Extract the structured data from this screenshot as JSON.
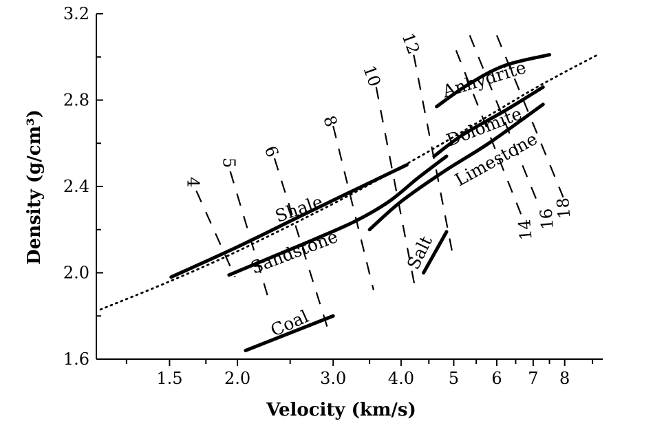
{
  "chart_data": {
    "type": "line",
    "xlabel": "Velocity (km/s)",
    "ylabel": "Density (g/cm³)",
    "xscale": "log",
    "xlim": [
      1.1,
      9.4
    ],
    "ylim": [
      1.6,
      3.2
    ],
    "x_tick_labels": [
      "1.5",
      "2.0",
      "3.0",
      "4.0",
      "5",
      "6",
      "7",
      "8"
    ],
    "x_ticks": [
      1.5,
      2.0,
      3.0,
      4.0,
      5,
      6,
      7,
      8
    ],
    "x_minor_ticks": [
      1.25,
      1.75,
      2.5,
      3.5,
      4.5,
      5.5,
      6.5,
      7.5,
      9
    ],
    "y_tick_labels": [
      "1.6",
      "2.0",
      "2.4",
      "2.8",
      "3.2"
    ],
    "y_ticks": [
      1.6,
      2.0,
      2.4,
      2.8,
      3.2
    ],
    "y_minor_ticks": [
      1.8,
      2.2,
      2.6,
      3.0
    ],
    "grid": false,
    "series": [
      {
        "name": "Shale",
        "style": "solid",
        "points": [
          [
            1.51,
            1.98
          ],
          [
            2.0,
            2.12
          ],
          [
            2.6,
            2.26
          ],
          [
            3.2,
            2.37
          ],
          [
            4.1,
            2.5
          ]
        ]
      },
      {
        "name": "Sandstone",
        "style": "solid",
        "points": [
          [
            1.93,
            1.99
          ],
          [
            2.3,
            2.07
          ],
          [
            2.8,
            2.16
          ],
          [
            3.3,
            2.24
          ],
          [
            3.8,
            2.33
          ],
          [
            4.3,
            2.44
          ],
          [
            4.85,
            2.54
          ]
        ]
      },
      {
        "name": "Limestone",
        "style": "solid",
        "points": [
          [
            3.5,
            2.2
          ],
          [
            4.0,
            2.33
          ],
          [
            4.8,
            2.47
          ],
          [
            5.8,
            2.6
          ],
          [
            7.3,
            2.78
          ]
        ]
      },
      {
        "name": "Dolomite",
        "style": "solid",
        "points": [
          [
            4.6,
            2.54
          ],
          [
            5.2,
            2.64
          ],
          [
            6.2,
            2.75
          ],
          [
            7.3,
            2.86
          ]
        ]
      },
      {
        "name": "Anhydrite",
        "style": "solid",
        "points": [
          [
            4.65,
            2.77
          ],
          [
            5.3,
            2.87
          ],
          [
            6.2,
            2.96
          ],
          [
            7.5,
            3.01
          ]
        ]
      },
      {
        "name": "Salt",
        "style": "solid",
        "points": [
          [
            4.4,
            2.0
          ],
          [
            4.85,
            2.19
          ]
        ]
      },
      {
        "name": "Coal",
        "style": "solid",
        "points": [
          [
            2.07,
            1.64
          ],
          [
            3.0,
            1.8
          ]
        ]
      },
      {
        "name": "",
        "style": "dotted",
        "points": [
          [
            1.12,
            1.83
          ],
          [
            1.5,
            1.96
          ],
          [
            2.0,
            2.1
          ],
          [
            3.0,
            2.32
          ],
          [
            4.0,
            2.49
          ],
          [
            5.0,
            2.63
          ],
          [
            6.0,
            2.75
          ],
          [
            7.0,
            2.85
          ],
          [
            8.0,
            2.93
          ],
          [
            9.2,
            3.01
          ]
        ]
      }
    ],
    "annotations": [
      {
        "text": "Shale",
        "x": 2.6,
        "y": 2.29,
        "rotation": -19
      },
      {
        "text": "Sandstone",
        "x": 2.55,
        "y": 2.09,
        "rotation": -21
      },
      {
        "text": "Limestone",
        "x": 6.0,
        "y": 2.52,
        "rotation": -29
      },
      {
        "text": "Dolomite",
        "x": 5.7,
        "y": 2.67,
        "rotation": -21
      },
      {
        "text": "Anhydrite",
        "x": 5.7,
        "y": 2.89,
        "rotation": -17
      },
      {
        "text": "Salt",
        "x": 4.35,
        "y": 2.09,
        "rotation": -64
      },
      {
        "text": "Coal",
        "x": 2.5,
        "y": 1.76,
        "rotation": -24
      }
    ],
    "iso_lines": [
      {
        "label": "4",
        "label_at": [
          1.65,
          2.42
        ],
        "label_rotation": 90,
        "points": [
          [
            1.68,
            2.38
          ],
          [
            1.98,
            1.98
          ]
        ]
      },
      {
        "label": "5",
        "label_at": [
          1.92,
          2.51
        ],
        "label_rotation": 90,
        "points": [
          [
            1.94,
            2.47
          ],
          [
            2.3,
            1.85
          ]
        ]
      },
      {
        "label": "6",
        "label_at": [
          2.3,
          2.56
        ],
        "label_rotation": 70,
        "points": [
          [
            2.34,
            2.53
          ],
          [
            2.95,
            1.72
          ]
        ]
      },
      {
        "label": "8",
        "label_at": [
          2.95,
          2.7
        ],
        "label_rotation": 70,
        "points": [
          [
            3.0,
            2.68
          ],
          [
            3.56,
            1.92
          ]
        ]
      },
      {
        "label": "10",
        "label_at": [
          3.52,
          2.91
        ],
        "label_rotation": 70,
        "points": [
          [
            3.6,
            2.86
          ],
          [
            4.23,
            1.95
          ]
        ]
      },
      {
        "label": "12",
        "label_at": [
          4.15,
          3.06
        ],
        "label_rotation": 70,
        "points": [
          [
            4.22,
            3.01
          ],
          [
            5.0,
            2.06
          ]
        ]
      },
      {
        "label": "14",
        "label_at": [
          6.8,
          2.2
        ],
        "label_rotation": -95,
        "points": [
          [
            5.05,
            3.03
          ],
          [
            6.7,
            2.25
          ]
        ]
      },
      {
        "label": "16",
        "label_at": [
          7.45,
          2.25
        ],
        "label_rotation": -95,
        "points": [
          [
            5.35,
            3.1
          ],
          [
            7.2,
            2.3
          ]
        ]
      },
      {
        "label": "18",
        "label_at": [
          8.0,
          2.3
        ],
        "label_rotation": -95,
        "points": [
          [
            6.0,
            3.1
          ],
          [
            7.95,
            2.35
          ]
        ]
      }
    ]
  }
}
